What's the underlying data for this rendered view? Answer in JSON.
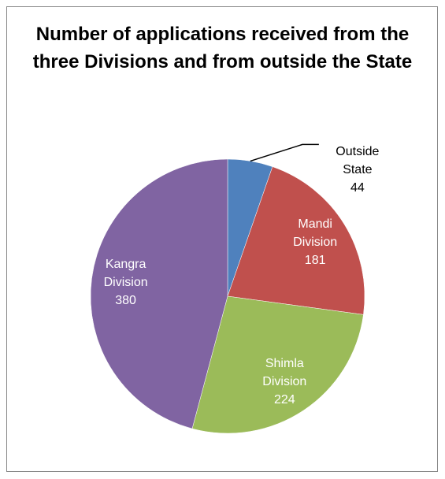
{
  "chart_data": {
    "type": "pie",
    "title": "Number of applications received from the three Divisions and from outside the State",
    "categories": [
      "Outside State",
      "Mandi Division",
      "Shimla Division",
      "Kangra Division"
    ],
    "values": [
      44,
      181,
      224,
      380
    ],
    "colors": [
      "#4f81bd",
      "#c0504d",
      "#9bbb59",
      "#8064a2"
    ]
  }
}
